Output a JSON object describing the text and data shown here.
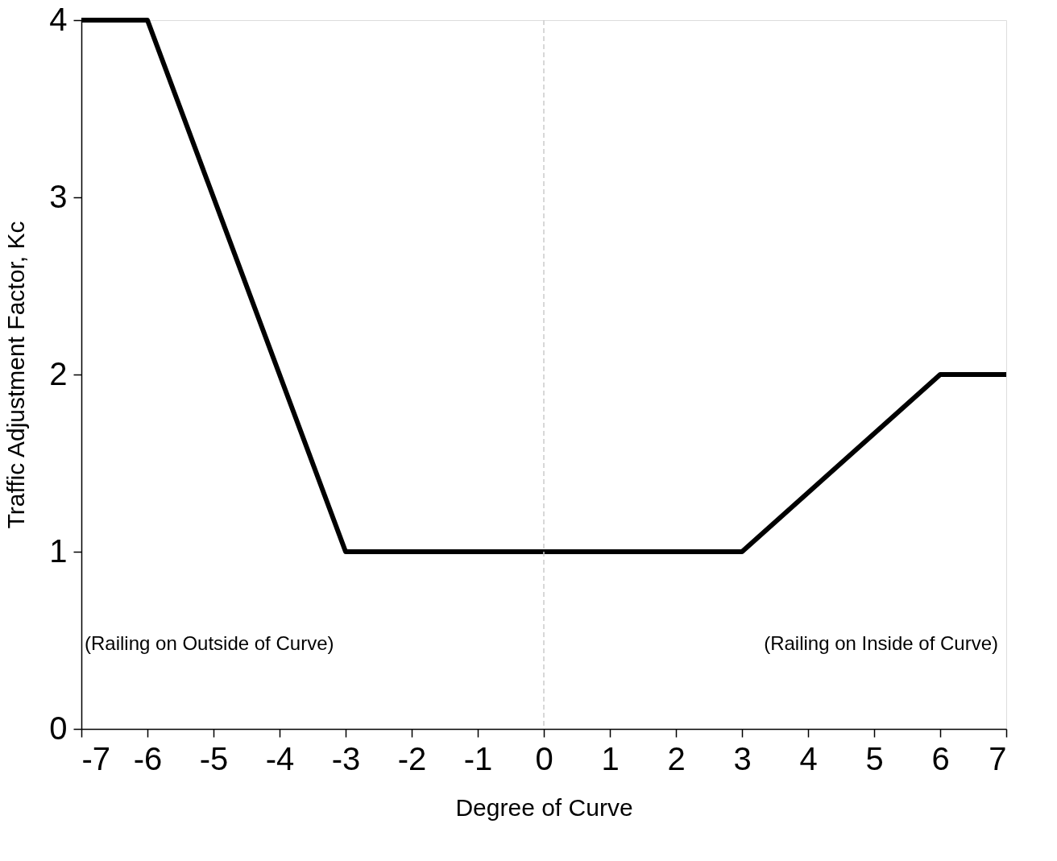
{
  "chart_data": {
    "type": "line",
    "xlabel": "Degree of Curve",
    "ylabel": "Traffic Adjustment Factor, Kc",
    "x": [
      -7,
      -6,
      -3,
      3,
      6,
      7
    ],
    "series": [
      {
        "color": "#000000",
        "values": [
          4,
          4,
          1,
          1,
          2,
          2
        ]
      }
    ],
    "xlim": [
      -7,
      7
    ],
    "xticks": [
      -7,
      -6,
      -5,
      -4,
      -3,
      -2,
      -1,
      0,
      1,
      2,
      3,
      4,
      5,
      6,
      7
    ],
    "ylim": [
      0,
      4
    ],
    "yticks": [
      0,
      1,
      2,
      3,
      4
    ],
    "grid": false,
    "marker": "none",
    "line_style": "solid",
    "ref_lines": [
      {
        "axis": "x",
        "value": 0,
        "color": "#cccccc",
        "line_style": "dashed"
      }
    ],
    "annotations": [
      "(Railing on Outside of Curve)",
      "(Railing on Inside of Curve)"
    ]
  }
}
